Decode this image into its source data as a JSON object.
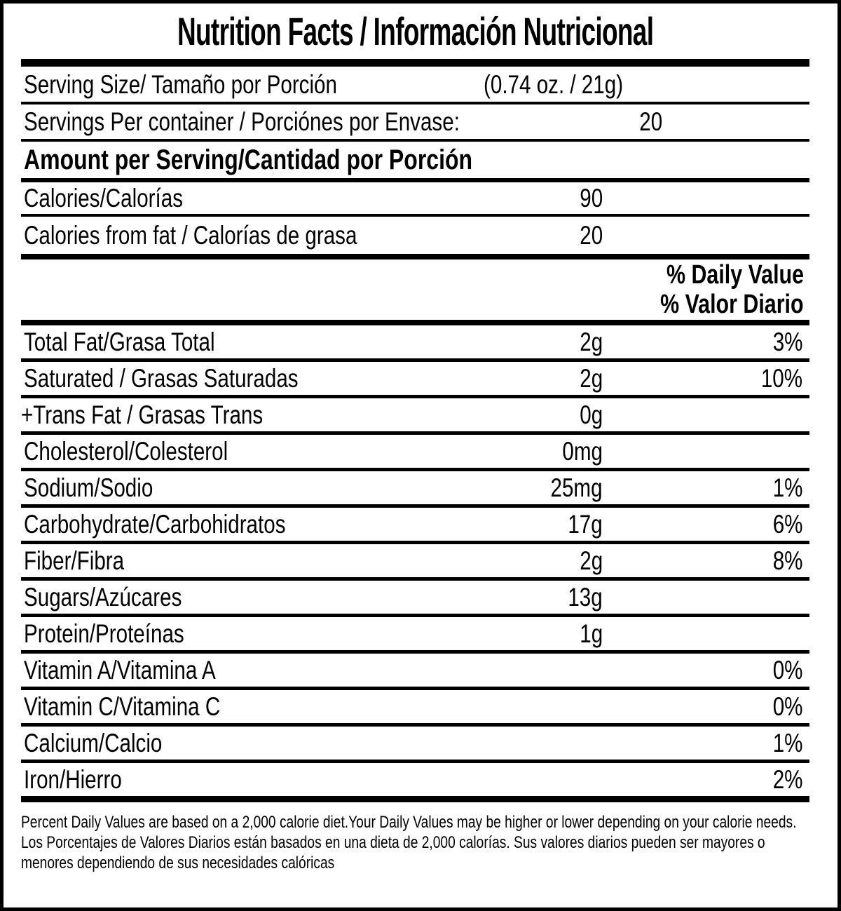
{
  "colors": {
    "background": "#ffffff",
    "text": "#000000",
    "rule": "#000000"
  },
  "title": "Nutrition Facts / Información Nutricional",
  "serving": {
    "label": "Serving Size/ Tamaño por Porción",
    "value": "(0.74 oz. / 21g)"
  },
  "servings_per_container": {
    "label": "Servings Per container / Porciónes por Envase:",
    "value": "20"
  },
  "section_header": "Amount per Serving/Cantidad por Porción",
  "calories": {
    "label": "Calories/Calorías",
    "value": "90"
  },
  "calories_from_fat": {
    "label": "Calories from fat / Calorías de grasa",
    "value": "20"
  },
  "daily_value_header_en": "% Daily Value",
  "daily_value_header_es": "% Valor Diario",
  "nutrients": [
    {
      "label": "Total Fat/Grasa Total",
      "amount": "2g",
      "dv": "3%"
    },
    {
      "label": "Saturated / Grasas Saturadas",
      "amount": "2g",
      "dv": "10%"
    },
    {
      "label": "+Trans Fat / Grasas Trans",
      "amount": "0g",
      "dv": ""
    },
    {
      "label": "Cholesterol/Colesterol",
      "amount": "0mg",
      "dv": ""
    },
    {
      "label": "Sodium/Sodio",
      "amount": "25mg",
      "dv": "1%"
    },
    {
      "label": "Carbohydrate/Carbohidratos",
      "amount": "17g",
      "dv": "6%"
    },
    {
      "label": "Fiber/Fibra",
      "amount": "2g",
      "dv": "8%"
    },
    {
      "label": "Sugars/Azúcares",
      "amount": "13g",
      "dv": ""
    },
    {
      "label": "Protein/Proteínas",
      "amount": "1g",
      "dv": ""
    },
    {
      "label": "Vitamin A/Vitamina A",
      "amount": "",
      "dv": "0%"
    },
    {
      "label": "Vitamin C/Vitamina C",
      "amount": "",
      "dv": "0%"
    },
    {
      "label": "Calcium/Calcio",
      "amount": "",
      "dv": "1%"
    },
    {
      "label": "Iron/Hierro",
      "amount": "",
      "dv": "2%"
    }
  ],
  "footnotes": {
    "en": "Percent Daily Values are based on a 2,000 calorie diet.Your Daily Values may be higher or lower depending on your calorie needs.",
    "es": "Los Porcentajes de Valores Diarios están basados en una dieta de 2,000 calorías. Sus valores diarios pueden ser mayores o menores dependiendo de sus necesidades calóricas"
  }
}
